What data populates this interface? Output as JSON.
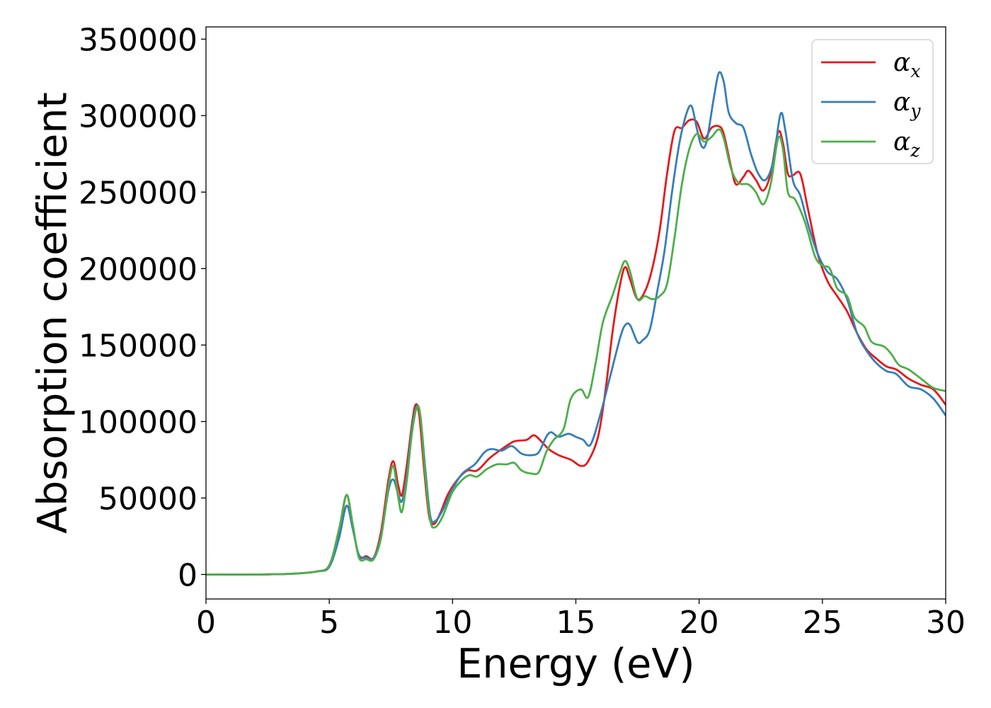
{
  "chart_data": {
    "type": "line",
    "title": "",
    "xlabel": "Energy (eV)",
    "ylabel": "Absorption coefficient",
    "xlim": [
      0,
      30
    ],
    "ylim": [
      -16000,
      358000
    ],
    "xticks": [
      0,
      5,
      10,
      15,
      20,
      25,
      30
    ],
    "xtick_labels": [
      "0",
      "5",
      "10",
      "15",
      "20",
      "25",
      "30"
    ],
    "yticks": [
      0,
      50000,
      100000,
      150000,
      200000,
      250000,
      300000,
      350000
    ],
    "ytick_labels": [
      "0",
      "50000",
      "100000",
      "150000",
      "200000",
      "250000",
      "300000",
      "350000"
    ],
    "grid": false,
    "legend_position": "top-right",
    "series": [
      {
        "name": "α",
        "name_sub": "x",
        "color": "#e41a1c",
        "points": [
          [
            0,
            0
          ],
          [
            2,
            0
          ],
          [
            3.5,
            500
          ],
          [
            4.5,
            2000
          ],
          [
            5,
            6000
          ],
          [
            5.4,
            28000
          ],
          [
            5.7,
            52000
          ],
          [
            5.95,
            32000
          ],
          [
            6.2,
            12000
          ],
          [
            6.5,
            12000
          ],
          [
            6.8,
            11000
          ],
          [
            7.1,
            28000
          ],
          [
            7.4,
            62000
          ],
          [
            7.6,
            74000
          ],
          [
            7.8,
            58000
          ],
          [
            7.95,
            52000
          ],
          [
            8.15,
            72000
          ],
          [
            8.35,
            98000
          ],
          [
            8.5,
            111000
          ],
          [
            8.65,
            104000
          ],
          [
            8.85,
            68000
          ],
          [
            9.05,
            38000
          ],
          [
            9.25,
            33000
          ],
          [
            9.5,
            40000
          ],
          [
            9.8,
            52000
          ],
          [
            10.2,
            62000
          ],
          [
            10.6,
            68000
          ],
          [
            11,
            68000
          ],
          [
            11.5,
            76000
          ],
          [
            12,
            82000
          ],
          [
            12.5,
            87000
          ],
          [
            13,
            88000
          ],
          [
            13.3,
            91000
          ],
          [
            13.6,
            87000
          ],
          [
            13.9,
            82000
          ],
          [
            14.3,
            78000
          ],
          [
            14.8,
            75000
          ],
          [
            15.2,
            71000
          ],
          [
            15.5,
            74000
          ],
          [
            15.9,
            90000
          ],
          [
            16.2,
            120000
          ],
          [
            16.5,
            160000
          ],
          [
            16.8,
            190000
          ],
          [
            17,
            201000
          ],
          [
            17.2,
            193000
          ],
          [
            17.5,
            180000
          ],
          [
            17.8,
            185000
          ],
          [
            18.1,
            200000
          ],
          [
            18.4,
            225000
          ],
          [
            18.7,
            262000
          ],
          [
            19,
            290000
          ],
          [
            19.3,
            292000
          ],
          [
            19.6,
            297000
          ],
          [
            19.9,
            296000
          ],
          [
            20.2,
            285000
          ],
          [
            20.5,
            292000
          ],
          [
            20.8,
            293000
          ],
          [
            21,
            288000
          ],
          [
            21.3,
            266000
          ],
          [
            21.5,
            255000
          ],
          [
            21.8,
            260000
          ],
          [
            22,
            264000
          ],
          [
            22.3,
            258000
          ],
          [
            22.6,
            251000
          ],
          [
            22.9,
            262000
          ],
          [
            23.2,
            289000
          ],
          [
            23.4,
            282000
          ],
          [
            23.6,
            262000
          ],
          [
            23.8,
            261000
          ],
          [
            24.1,
            262000
          ],
          [
            24.4,
            240000
          ],
          [
            24.8,
            210000
          ],
          [
            25.2,
            192000
          ],
          [
            25.6,
            182000
          ],
          [
            26,
            172000
          ],
          [
            26.4,
            158000
          ],
          [
            26.8,
            147000
          ],
          [
            27.2,
            141000
          ],
          [
            27.6,
            136000
          ],
          [
            28,
            134000
          ],
          [
            28.5,
            128000
          ],
          [
            29,
            124000
          ],
          [
            29.5,
            121000
          ],
          [
            30,
            111000
          ]
        ]
      },
      {
        "name": "α",
        "name_sub": "y",
        "color": "#377eb8",
        "points": [
          [
            0,
            0
          ],
          [
            2,
            0
          ],
          [
            3.5,
            500
          ],
          [
            4.5,
            2000
          ],
          [
            5,
            5000
          ],
          [
            5.4,
            24000
          ],
          [
            5.7,
            45000
          ],
          [
            5.95,
            30000
          ],
          [
            6.2,
            13000
          ],
          [
            6.5,
            11000
          ],
          [
            6.8,
            11000
          ],
          [
            7.1,
            25000
          ],
          [
            7.4,
            55000
          ],
          [
            7.6,
            62000
          ],
          [
            7.8,
            52000
          ],
          [
            7.95,
            48000
          ],
          [
            8.15,
            65000
          ],
          [
            8.35,
            95000
          ],
          [
            8.55,
            110000
          ],
          [
            8.7,
            103000
          ],
          [
            8.9,
            68000
          ],
          [
            9.1,
            38000
          ],
          [
            9.3,
            35000
          ],
          [
            9.6,
            42000
          ],
          [
            10,
            56000
          ],
          [
            10.4,
            66000
          ],
          [
            10.9,
            72000
          ],
          [
            11.3,
            80000
          ],
          [
            11.6,
            82000
          ],
          [
            12,
            81000
          ],
          [
            12.4,
            84000
          ],
          [
            12.8,
            79000
          ],
          [
            13.2,
            78000
          ],
          [
            13.5,
            80000
          ],
          [
            13.8,
            90000
          ],
          [
            14,
            93000
          ],
          [
            14.3,
            90000
          ],
          [
            14.7,
            92000
          ],
          [
            15,
            90000
          ],
          [
            15.3,
            88000
          ],
          [
            15.6,
            85000
          ],
          [
            16,
            105000
          ],
          [
            16.4,
            130000
          ],
          [
            16.8,
            155000
          ],
          [
            17,
            163000
          ],
          [
            17.2,
            163000
          ],
          [
            17.5,
            152000
          ],
          [
            17.7,
            153000
          ],
          [
            18,
            160000
          ],
          [
            18.3,
            185000
          ],
          [
            18.6,
            212000
          ],
          [
            18.9,
            250000
          ],
          [
            19.2,
            282000
          ],
          [
            19.5,
            302000
          ],
          [
            19.7,
            306000
          ],
          [
            19.9,
            292000
          ],
          [
            20.1,
            280000
          ],
          [
            20.3,
            283000
          ],
          [
            20.6,
            312000
          ],
          [
            20.8,
            328000
          ],
          [
            21,
            322000
          ],
          [
            21.2,
            302000
          ],
          [
            21.5,
            295000
          ],
          [
            21.8,
            292000
          ],
          [
            22.1,
            275000
          ],
          [
            22.4,
            262000
          ],
          [
            22.7,
            258000
          ],
          [
            23,
            270000
          ],
          [
            23.3,
            301000
          ],
          [
            23.5,
            290000
          ],
          [
            23.8,
            258000
          ],
          [
            24.1,
            248000
          ],
          [
            24.4,
            230000
          ],
          [
            24.8,
            210000
          ],
          [
            25.2,
            198000
          ],
          [
            25.6,
            193000
          ],
          [
            26,
            180000
          ],
          [
            26.4,
            158000
          ],
          [
            26.8,
            146000
          ],
          [
            27.2,
            138000
          ],
          [
            27.6,
            133000
          ],
          [
            28,
            131000
          ],
          [
            28.5,
            123000
          ],
          [
            29,
            121000
          ],
          [
            29.5,
            115000
          ],
          [
            30,
            104000
          ]
        ]
      },
      {
        "name": "α",
        "name_sub": "z",
        "color": "#4daf4a",
        "points": [
          [
            0,
            0
          ],
          [
            2,
            0
          ],
          [
            3.5,
            500
          ],
          [
            4.5,
            2000
          ],
          [
            5,
            6000
          ],
          [
            5.4,
            30000
          ],
          [
            5.7,
            52000
          ],
          [
            5.95,
            33000
          ],
          [
            6.2,
            11000
          ],
          [
            6.5,
            10000
          ],
          [
            6.8,
            10000
          ],
          [
            7.1,
            24000
          ],
          [
            7.4,
            58000
          ],
          [
            7.6,
            71000
          ],
          [
            7.8,
            50000
          ],
          [
            7.95,
            41000
          ],
          [
            8.15,
            62000
          ],
          [
            8.35,
            92000
          ],
          [
            8.55,
            109000
          ],
          [
            8.7,
            103000
          ],
          [
            8.9,
            64000
          ],
          [
            9.1,
            35000
          ],
          [
            9.3,
            31000
          ],
          [
            9.6,
            38000
          ],
          [
            10,
            54000
          ],
          [
            10.4,
            62000
          ],
          [
            10.7,
            65000
          ],
          [
            11,
            64000
          ],
          [
            11.4,
            69000
          ],
          [
            11.8,
            72000
          ],
          [
            12.2,
            72000
          ],
          [
            12.5,
            73000
          ],
          [
            12.8,
            68000
          ],
          [
            13.2,
            66000
          ],
          [
            13.5,
            67000
          ],
          [
            13.8,
            80000
          ],
          [
            14.1,
            88000
          ],
          [
            14.5,
            95000
          ],
          [
            14.8,
            115000
          ],
          [
            15.2,
            121000
          ],
          [
            15.5,
            116000
          ],
          [
            15.8,
            138000
          ],
          [
            16.1,
            165000
          ],
          [
            16.5,
            183000
          ],
          [
            16.8,
            198000
          ],
          [
            17,
            205000
          ],
          [
            17.2,
            198000
          ],
          [
            17.5,
            180000
          ],
          [
            17.8,
            182000
          ],
          [
            18.1,
            180000
          ],
          [
            18.4,
            182000
          ],
          [
            18.7,
            190000
          ],
          [
            19,
            220000
          ],
          [
            19.3,
            255000
          ],
          [
            19.6,
            278000
          ],
          [
            19.9,
            288000
          ],
          [
            20.2,
            283000
          ],
          [
            20.5,
            286000
          ],
          [
            20.8,
            291000
          ],
          [
            21,
            285000
          ],
          [
            21.3,
            265000
          ],
          [
            21.6,
            256000
          ],
          [
            22,
            255000
          ],
          [
            22.3,
            250000
          ],
          [
            22.6,
            242000
          ],
          [
            22.9,
            255000
          ],
          [
            23.2,
            285000
          ],
          [
            23.4,
            278000
          ],
          [
            23.6,
            250000
          ],
          [
            23.9,
            245000
          ],
          [
            24.3,
            230000
          ],
          [
            24.7,
            208000
          ],
          [
            25,
            202000
          ],
          [
            25.3,
            200000
          ],
          [
            25.6,
            187000
          ],
          [
            26,
            182000
          ],
          [
            26.3,
            168000
          ],
          [
            26.7,
            162000
          ],
          [
            27,
            152000
          ],
          [
            27.5,
            149000
          ],
          [
            27.8,
            144000
          ],
          [
            28.1,
            137000
          ],
          [
            28.5,
            134000
          ],
          [
            29,
            128000
          ],
          [
            29.5,
            122000
          ],
          [
            30,
            120000
          ]
        ]
      }
    ]
  }
}
